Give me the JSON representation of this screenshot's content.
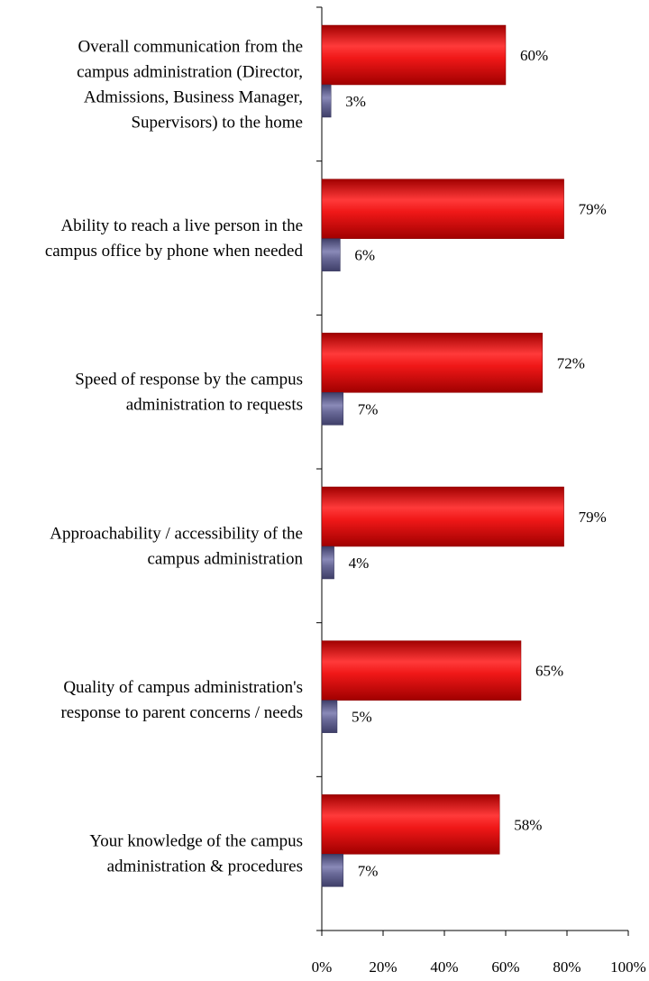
{
  "chart_data": {
    "type": "bar",
    "orientation": "horizontal",
    "categories": [
      [
        "Overall communication from the",
        "campus administration (Director,",
        "Admissions, Business Manager,",
        "Supervisors) to the home"
      ],
      [
        "Ability to reach a live person in the",
        "campus office by phone when needed"
      ],
      [
        "Speed of response by the campus",
        "administration to requests"
      ],
      [
        "Approachability / accessibility of the",
        "campus administration"
      ],
      [
        "Quality of campus administration's",
        "response to parent concerns / needs"
      ],
      [
        "Your knowledge of the campus",
        "administration & procedures"
      ]
    ],
    "series": [
      {
        "values": [
          60,
          79,
          72,
          79,
          65,
          58
        ],
        "color": "#e01010"
      },
      {
        "values": [
          3,
          6,
          7,
          4,
          5,
          7
        ],
        "color": "#60608e"
      }
    ],
    "value_labels": [
      [
        "60%",
        "79%",
        "72%",
        "79%",
        "65%",
        "58%"
      ],
      [
        "3%",
        "6%",
        "7%",
        "4%",
        "5%",
        "7%"
      ]
    ],
    "xlim": [
      0,
      100
    ],
    "xticks": [
      "0%",
      "20%",
      "40%",
      "60%",
      "80%",
      "100%"
    ],
    "grid": false,
    "legend": "none",
    "title": "",
    "xlabel": "",
    "ylabel": ""
  }
}
